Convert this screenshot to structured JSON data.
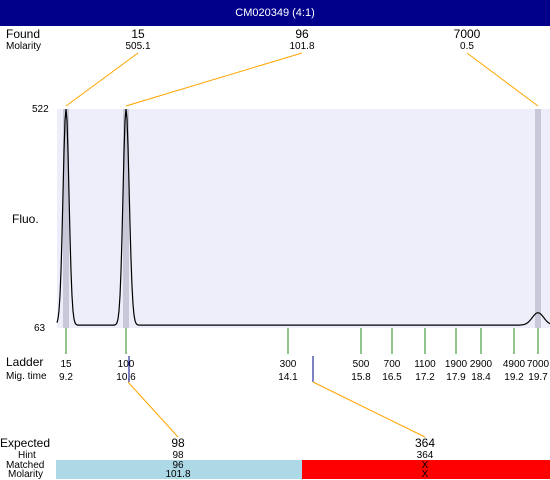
{
  "title": "CM020349 (4:1)",
  "header": {
    "found_label": "Found",
    "molarity_label": "Molarity",
    "fluo_label": "Fluo.",
    "ladder_label": "Ladder",
    "mig_time_label": "Mig. time"
  },
  "found_peaks": [
    {
      "size": "15",
      "molarity": "505.1"
    },
    {
      "size": "96",
      "molarity": "101.8"
    },
    {
      "size": "7000",
      "molarity": "0.5"
    }
  ],
  "expected": {
    "expected_label": "Expected",
    "hint_label": "Hint",
    "matched_label": "Matched",
    "molarity_label": "Molarity",
    "items": [
      {
        "expected": "98",
        "hint": "98",
        "matched": "96",
        "molarity": "101.8",
        "color": "#add8e6"
      },
      {
        "expected": "364",
        "hint": "364",
        "matched": "X",
        "molarity": "X",
        "color": "#ff0000"
      }
    ]
  },
  "colors": {
    "title_bg": "#00008b",
    "plot_bg": "#eeeefa",
    "ladder_tick": "#228b22",
    "connector": "#ffa500",
    "trace": "#000000",
    "matched_bar": "#add8e6",
    "unmatched_bar": "#ff0000"
  },
  "chart_data": {
    "type": "line",
    "ylabel": "Fluo.",
    "ylim": [
      63,
      522
    ],
    "xlabel": "Mig. time",
    "ladder": [
      {
        "size": "15",
        "time": 9.2
      },
      {
        "size": "100",
        "time": 10.6
      },
      {
        "size": "300",
        "time": 14.1
      },
      {
        "size": "500",
        "time": 15.8
      },
      {
        "size": "700",
        "time": 16.5
      },
      {
        "size": "1100",
        "time": 17.2
      },
      {
        "size": "1900",
        "time": 17.9
      },
      {
        "size": "2900",
        "time": 18.4
      },
      {
        "size": "4900",
        "time": 19.2
      },
      {
        "size": "7000",
        "time": 19.7
      }
    ],
    "peaks": [
      {
        "size": "15",
        "time": 9.2,
        "height": 522
      },
      {
        "size": "96",
        "time": 10.6,
        "height": 522
      },
      {
        "size": "7000",
        "time": 19.7,
        "height": 95
      }
    ]
  }
}
